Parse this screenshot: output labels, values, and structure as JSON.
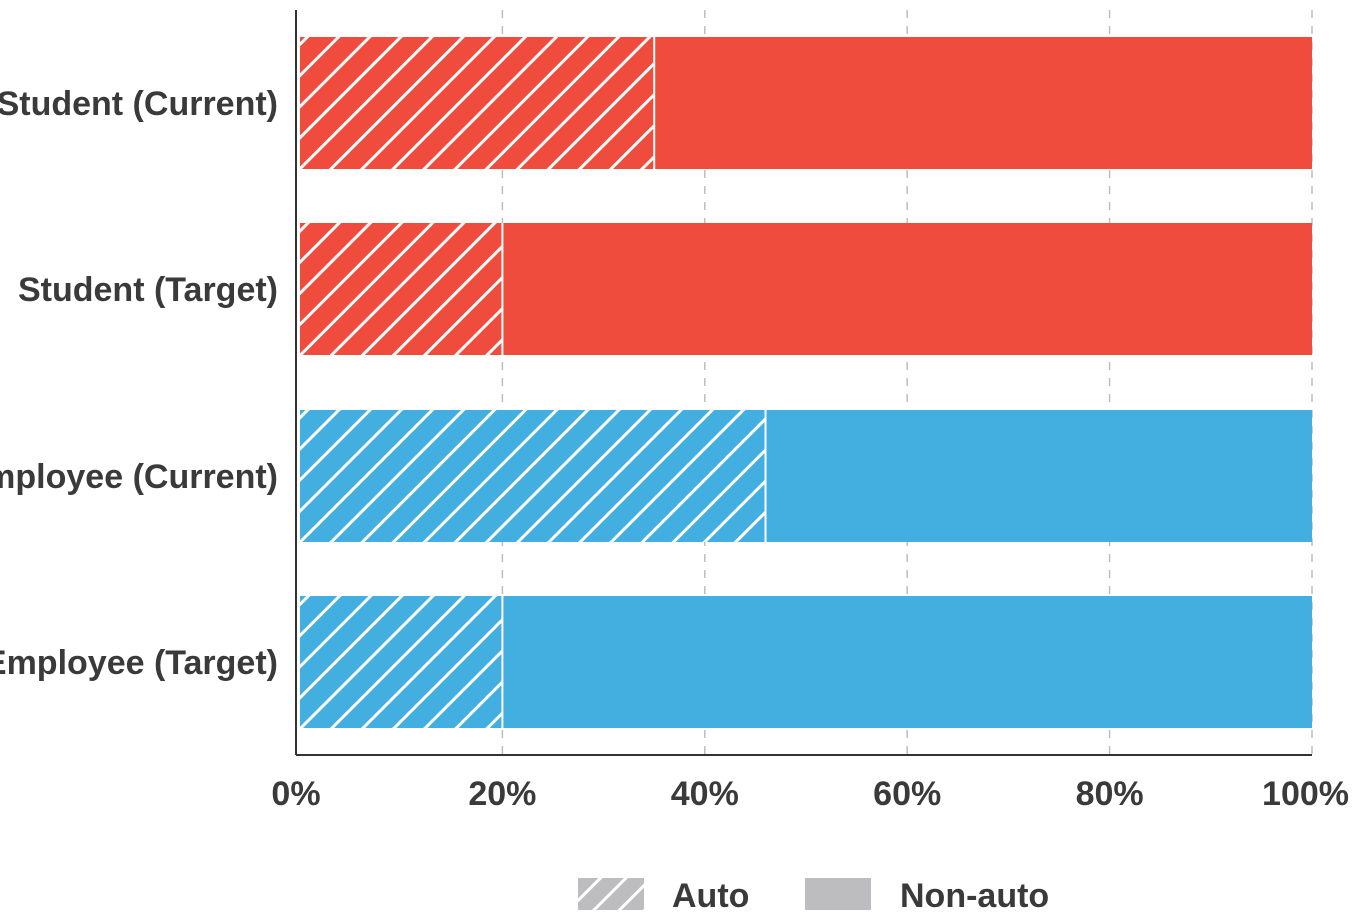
{
  "chart_data": {
    "type": "bar",
    "orientation": "horizontal",
    "stacked": true,
    "percent": true,
    "categories": [
      "Student (Current)",
      "Student (Target)",
      "Employee (Current)",
      "Employee (Target)"
    ],
    "series": [
      {
        "name": "Auto",
        "values": [
          35,
          20,
          46,
          20
        ],
        "pattern": "hatched"
      },
      {
        "name": "Non-auto",
        "values": [
          65,
          80,
          54,
          80
        ],
        "pattern": "solid"
      }
    ],
    "bar_colors": [
      "#f04c3e",
      "#f04c3e",
      "#43aee0",
      "#43aee0"
    ],
    "xlim": [
      0,
      100
    ],
    "xticks": [
      "0%",
      "20%",
      "40%",
      "60%",
      "80%",
      "100%"
    ],
    "xtick_values": [
      0,
      20,
      40,
      60,
      80,
      100
    ],
    "grid": "vertical-dashed",
    "legend": {
      "placement": "bottom-center",
      "items": [
        {
          "label": "Auto",
          "swatch": "hatched",
          "color": "#bdbdbf"
        },
        {
          "label": "Non-auto",
          "swatch": "solid",
          "color": "#bdbdbf"
        }
      ]
    },
    "axis_color": "#333333",
    "grid_color": "#bdbdbd"
  }
}
